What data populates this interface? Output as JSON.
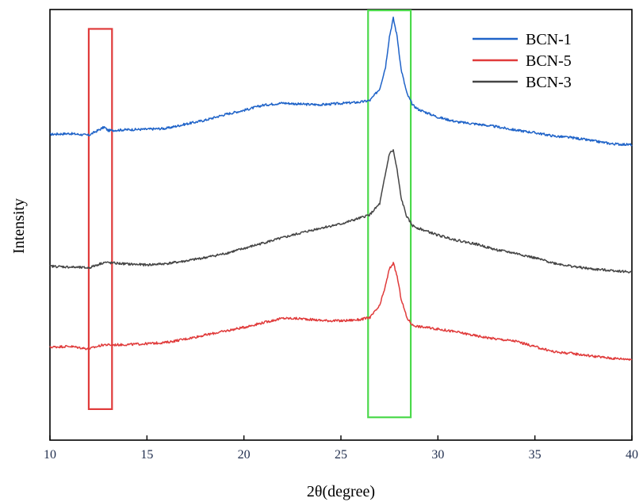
{
  "chart_data": {
    "type": "line",
    "xlabel": "2θ(degree)",
    "ylabel": "Intensity",
    "xlim": [
      10,
      40
    ],
    "ylim": [
      0,
      100
    ],
    "x_ticks": [
      "10",
      "15",
      "20",
      "25",
      "30",
      "35",
      "40"
    ],
    "y_ticks_labeled": false,
    "grid": false,
    "legend_position": "top-right",
    "series": [
      {
        "name": "BCN-1",
        "color": "#1f63c8",
        "x": [
          10,
          11,
          12,
          12.8,
          13,
          14,
          15,
          16,
          17,
          18,
          19,
          20,
          21,
          22,
          23,
          24,
          25,
          26,
          26.5,
          27,
          27.3,
          27.5,
          27.7,
          27.9,
          28.1,
          28.4,
          28.7,
          29,
          30,
          31,
          32,
          33,
          34,
          35,
          36,
          37,
          38,
          39,
          40
        ],
        "values": [
          71,
          71.2,
          70.8,
          72.7,
          71.9,
          72.1,
          72.2,
          72.4,
          73.4,
          74.3,
          75.6,
          76.6,
          77.8,
          78.3,
          78.0,
          77.9,
          78.2,
          78.5,
          78.9,
          81.6,
          86.7,
          93.7,
          98.0,
          93.7,
          86.2,
          80.5,
          77.8,
          76.8,
          75.0,
          73.9,
          73.4,
          72.8,
          72.0,
          71.4,
          70.6,
          70.2,
          69.5,
          68.8,
          68.6
        ]
      },
      {
        "name": "BCN-5",
        "color": "#e03b3b",
        "x": [
          10,
          11,
          12,
          12.8,
          13,
          14,
          15,
          16,
          17,
          18,
          19,
          20,
          21,
          22,
          23,
          24,
          25,
          26,
          26.5,
          27,
          27.3,
          27.5,
          27.7,
          27.9,
          28.1,
          28.4,
          28.7,
          29,
          30,
          31,
          32,
          33,
          34,
          35,
          36,
          37,
          38,
          39,
          40
        ],
        "values": [
          21.6,
          21.8,
          21.2,
          22.2,
          22.1,
          22.2,
          22.4,
          22.7,
          23.5,
          24.4,
          25.3,
          26.2,
          27.3,
          28.3,
          28.2,
          27.8,
          27.7,
          28.0,
          28.5,
          31.2,
          35.9,
          39.8,
          41.1,
          38.0,
          32.9,
          28.4,
          26.7,
          26.4,
          25.8,
          25.1,
          24.2,
          23.5,
          23.0,
          21.7,
          20.5,
          20.1,
          19.5,
          19.0,
          18.8
        ]
      },
      {
        "name": "BCN-3",
        "color": "#454545",
        "x": [
          10,
          11,
          12,
          12.8,
          13,
          14,
          15,
          16,
          17,
          18,
          19,
          20,
          21,
          22,
          23,
          24,
          25,
          26,
          26.5,
          27,
          27.3,
          27.5,
          27.7,
          27.9,
          28.1,
          28.4,
          28.7,
          29,
          30,
          31,
          32,
          33,
          34,
          35,
          36,
          37,
          38,
          39,
          40
        ],
        "values": [
          40.4,
          40.2,
          40.0,
          41.3,
          41.2,
          40.9,
          40.7,
          41.0,
          41.6,
          42.4,
          43.3,
          44.5,
          45.8,
          47.0,
          48.2,
          49.3,
          50.2,
          51.6,
          52.4,
          54.9,
          61.9,
          66.6,
          67.3,
          62.6,
          56.3,
          51.8,
          49.8,
          49.2,
          47.6,
          46.4,
          45.5,
          44.2,
          43.4,
          42.3,
          41.1,
          40.3,
          39.7,
          39.4,
          39.0
        ]
      }
    ],
    "highlight_boxes": [
      {
        "color": "#e03b3b",
        "x_range": [
          12.0,
          13.2
        ],
        "y_range": [
          7.2,
          95.5
        ]
      },
      {
        "color": "#4cd94c",
        "x_range": [
          26.4,
          28.6
        ],
        "y_range": [
          5.3,
          99.8
        ]
      }
    ]
  }
}
